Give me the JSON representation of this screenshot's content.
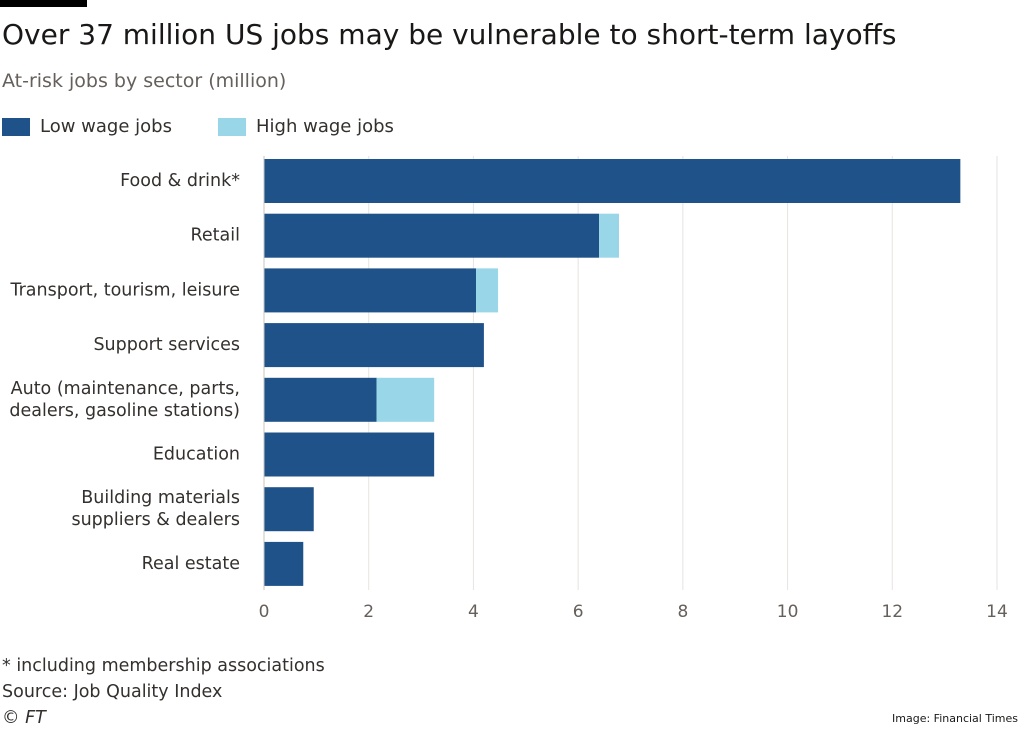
{
  "header": {
    "title": "Over 37 million US jobs may be vulnerable to short-term layoffs",
    "subtitle": "At-risk jobs by sector (million)"
  },
  "legend": {
    "items": [
      {
        "label": "Low wage jobs",
        "color": "#1f5289"
      },
      {
        "label": "High wage jobs",
        "color": "#98d6e8"
      }
    ]
  },
  "chart_data": {
    "type": "bar",
    "orientation": "horizontal",
    "stacked": true,
    "title": "Over 37 million US jobs may be vulnerable to short-term layoffs",
    "subtitle": "At-risk jobs by sector (million)",
    "xlabel": "",
    "ylabel": "",
    "xlim": [
      0,
      14
    ],
    "xticks": [
      0,
      2,
      4,
      6,
      8,
      10,
      12,
      14
    ],
    "grid": "vertical",
    "legend_position": "top-left",
    "categories": [
      [
        "Food & drink*"
      ],
      [
        "Retail"
      ],
      [
        "Transport, tourism, leisure"
      ],
      [
        "Support services"
      ],
      [
        "Auto (maintenance, parts,",
        "dealers, gasoline stations)"
      ],
      [
        "Education"
      ],
      [
        "Building materials",
        "suppliers & dealers"
      ],
      [
        "Real estate"
      ]
    ],
    "series": [
      {
        "name": "Low wage jobs",
        "color": "#1f5289",
        "values": [
          13.3,
          6.4,
          4.05,
          4.2,
          2.15,
          3.25,
          0.95,
          0.75
        ]
      },
      {
        "name": "High wage jobs",
        "color": "#98d6e8",
        "values": [
          0,
          0.38,
          0.42,
          0,
          1.1,
          0,
          0,
          0
        ]
      }
    ]
  },
  "footer": {
    "footnote": "* including membership associations",
    "source": "Source: Job Quality Index",
    "copyright": "© FT",
    "credit": "Image: Financial Times"
  }
}
